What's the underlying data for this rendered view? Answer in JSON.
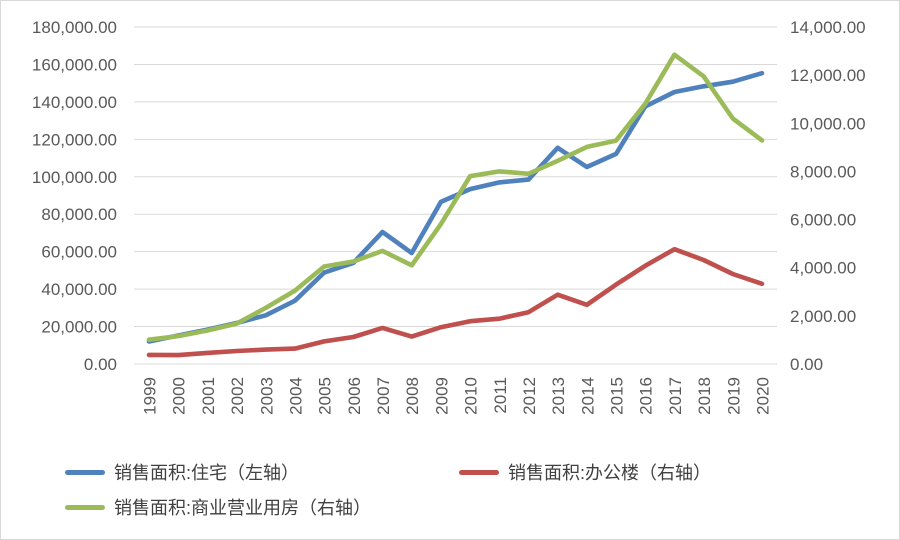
{
  "chart_data": {
    "type": "line",
    "title": "",
    "categories": [
      "1999",
      "2000",
      "2001",
      "2002",
      "2003",
      "2004",
      "2005",
      "2006",
      "2007",
      "2008",
      "2009",
      "2010",
      "2011",
      "2012",
      "2013",
      "2014",
      "2015",
      "2016",
      "2017",
      "2018",
      "2019",
      "2020"
    ],
    "series": [
      {
        "name": "销售面积:住宅（左轴）",
        "axis": "left",
        "color": "#4F81BD",
        "values": [
          12000,
          15200,
          18400,
          21900,
          26000,
          33800,
          48800,
          54000,
          70500,
          59300,
          86600,
          93400,
          97000,
          98500,
          115500,
          105200,
          112200,
          137600,
          145300,
          148300,
          150800,
          155300
        ]
      },
      {
        "name": "销售面积:办公楼（右轴）",
        "axis": "right",
        "color": "#C0504D",
        "values": [
          380,
          370,
          460,
          540,
          600,
          640,
          940,
          1120,
          1500,
          1140,
          1530,
          1780,
          1880,
          2150,
          2880,
          2460,
          3300,
          4080,
          4770,
          4320,
          3740,
          3330
        ]
      },
      {
        "name": "销售面积:商业营业用房（右轴）",
        "axis": "right",
        "color": "#9BBB59",
        "values": [
          1010,
          1160,
          1390,
          1680,
          2330,
          3050,
          4050,
          4260,
          4700,
          4100,
          5810,
          7800,
          8000,
          7900,
          8440,
          9020,
          9280,
          10810,
          12850,
          11950,
          10200,
          9290
        ]
      }
    ],
    "left_axis": {
      "min": 0,
      "max": 180000,
      "step": 20000,
      "tick_labels": [
        "0.00",
        "20,000.00",
        "40,000.00",
        "60,000.00",
        "80,000.00",
        "100,000.00",
        "120,000.00",
        "140,000.00",
        "160,000.00",
        "180,000.00"
      ]
    },
    "right_axis": {
      "min": 0,
      "max": 14000,
      "step": 2000,
      "tick_labels": [
        "0.00",
        "2,000.00",
        "4,000.00",
        "6,000.00",
        "8,000.00",
        "10,000.00",
        "12,000.00",
        "14,000.00"
      ]
    },
    "grid": true,
    "legend_position": "bottom",
    "colors": {
      "gridline": "#D9D9D9",
      "tick_text": "#595959",
      "legend_text": "#404040"
    }
  }
}
